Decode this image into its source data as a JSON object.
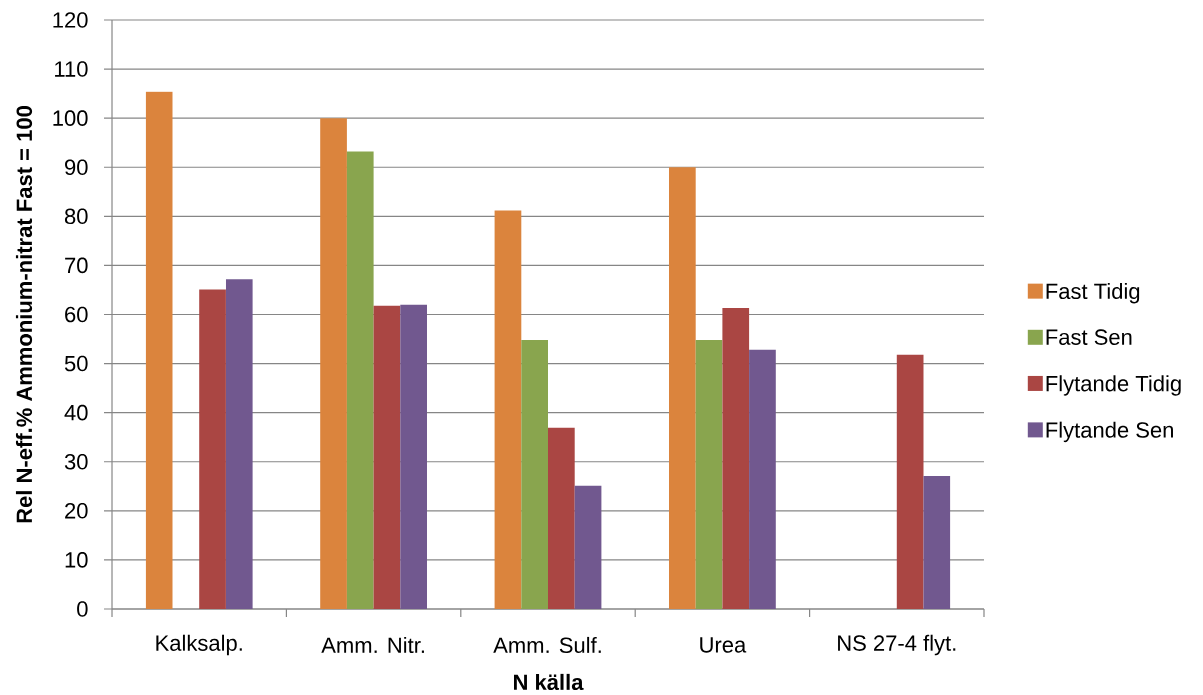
{
  "chart_data": {
    "type": "bar",
    "xlabel": "N källa",
    "ylabel": "Rel N-eff.%    Ammonium-nitrat Fast = 100",
    "categories": [
      "Kalksalp.",
      "Amm. Nitr.",
      "Amm. Sulf.",
      "Urea",
      "NS 27-4 flyt."
    ],
    "series": [
      {
        "name": "Fast Tidig",
        "color": "#db843d",
        "values": [
          105.4,
          100,
          81.2,
          90,
          null
        ]
      },
      {
        "name": "Fast Sen",
        "color": "#89a54e",
        "values": [
          null,
          93.2,
          54.8,
          54.8,
          null
        ]
      },
      {
        "name": "Flytande Tidig",
        "color": "#aa4643",
        "values": [
          65.1,
          61.8,
          36.9,
          61.3,
          51.8
        ]
      },
      {
        "name": "Flytande Sen",
        "color": "#71588f",
        "values": [
          67.2,
          62.0,
          25.1,
          52.8,
          27.1
        ]
      }
    ],
    "ylim": [
      0,
      120
    ],
    "yticks": [
      0,
      10,
      20,
      30,
      40,
      50,
      60,
      70,
      80,
      90,
      100,
      110,
      120
    ],
    "grid": "y",
    "legend": "right"
  }
}
